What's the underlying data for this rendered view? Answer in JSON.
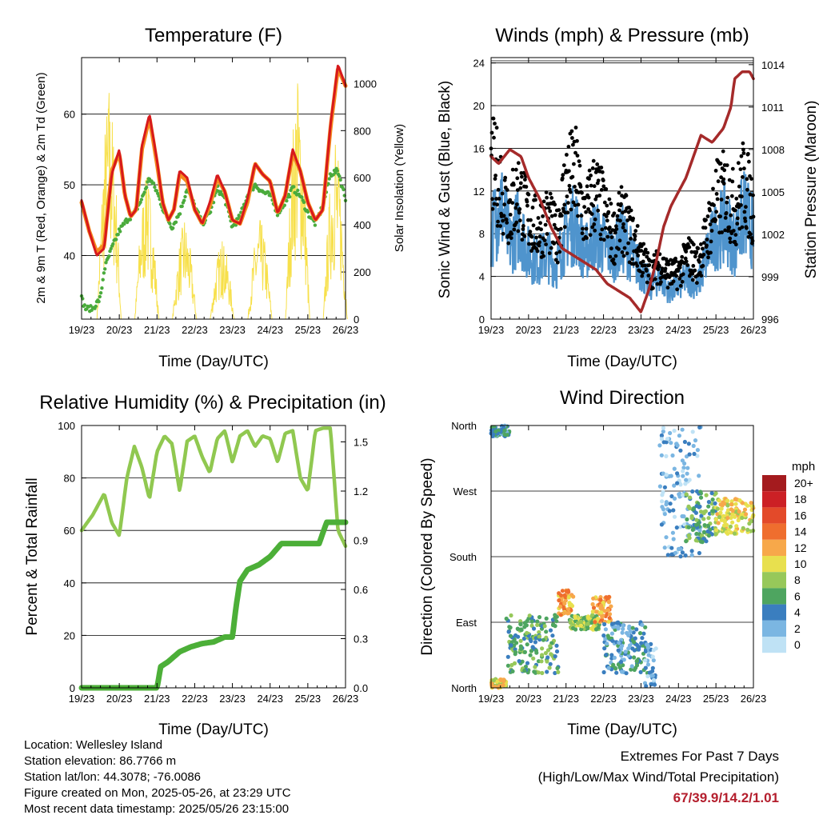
{
  "chart_data": [
    {
      "type": "line",
      "title": "Temperature (F)",
      "xlabel": "Time (Day/UTC)",
      "ylabel": "2m & 9m T (Red, Orange) & 2m Td (Green)",
      "y2label": "Solar Insolation (Yellow)",
      "x_ticks": [
        "19/23",
        "20/23",
        "21/23",
        "22/23",
        "23/23",
        "24/23",
        "25/23",
        "26/23"
      ],
      "ylim": [
        31,
        68
      ],
      "yticks": [
        40,
        50,
        60
      ],
      "y2lim": [
        0,
        1110
      ],
      "y2ticks": [
        0,
        200,
        400,
        600,
        800,
        1000
      ],
      "grid": true,
      "colors": {
        "t2m": "#d7191c",
        "t9m": "#f68b1f",
        "td": "#4aab3c",
        "solar": "#f7e04b"
      },
      "series": [
        {
          "key": "t9m",
          "x": [
            0,
            0.2,
            0.4,
            0.6,
            0.8,
            1.0,
            1.15,
            1.3,
            1.45,
            1.6,
            1.8,
            2.0,
            2.15,
            2.3,
            2.45,
            2.6,
            2.8,
            3.0,
            3.2,
            3.4,
            3.6,
            3.8,
            4.0,
            4.2,
            4.4,
            4.6,
            4.8,
            5.0,
            5.2,
            5.4,
            5.6,
            5.8,
            6.0,
            6.2,
            6.4,
            6.6,
            6.8,
            7.0
          ],
          "y": [
            47.5,
            43.5,
            40.5,
            41.5,
            52,
            54.5,
            48.5,
            45.5,
            46.5,
            55,
            59.5,
            53,
            47.5,
            45,
            46.5,
            51.5,
            50.5,
            46.5,
            44.5,
            47,
            51,
            49,
            45,
            44.5,
            47.5,
            53,
            51.5,
            50.5,
            46,
            48.5,
            54.5,
            52,
            47.5,
            45,
            46.5,
            58,
            66.5,
            64
          ]
        },
        {
          "key": "t2m",
          "x": [
            0,
            0.2,
            0.4,
            0.6,
            0.8,
            1.0,
            1.15,
            1.3,
            1.45,
            1.6,
            1.8,
            2.0,
            2.15,
            2.3,
            2.45,
            2.6,
            2.8,
            3.0,
            3.2,
            3.4,
            3.6,
            3.8,
            4.0,
            4.2,
            4.4,
            4.6,
            4.8,
            5.0,
            5.2,
            5.4,
            5.6,
            5.8,
            6.0,
            6.2,
            6.4,
            6.6,
            6.8,
            7.0
          ],
          "y": [
            47.8,
            43.5,
            40,
            41,
            51.5,
            55,
            48.5,
            45.5,
            46.5,
            55.5,
            60,
            53.5,
            47.5,
            45,
            46.5,
            52,
            51,
            46.5,
            44.5,
            47.5,
            51.5,
            49,
            45,
            44.5,
            48,
            53,
            51.5,
            50.5,
            46,
            48.5,
            55,
            52,
            47.5,
            45,
            46.5,
            58.5,
            67,
            64
          ]
        },
        {
          "key": "td",
          "x": [
            0,
            0.1,
            0.3,
            0.5,
            0.6,
            0.8,
            1.0,
            1.2,
            1.4,
            1.6,
            1.8,
            2.0,
            2.2,
            2.4,
            2.6,
            2.8,
            3.0,
            3.2,
            3.4,
            3.6,
            3.8,
            4.0,
            4.2,
            4.4,
            4.6,
            4.8,
            5.0,
            5.2,
            5.4,
            5.6,
            5.8,
            6.0,
            6.2,
            6.4,
            6.6,
            6.8,
            7.0
          ],
          "y": [
            34,
            32.5,
            32.5,
            34,
            38,
            41,
            43.5,
            45,
            46,
            48,
            51,
            49,
            46,
            44,
            46,
            49.5,
            47,
            44.5,
            46,
            49.5,
            48,
            44,
            45.5,
            48.5,
            50,
            49,
            48.5,
            46,
            47.5,
            49.5,
            48.5,
            46,
            44.5,
            47,
            51.5,
            52,
            48
          ]
        },
        {
          "key": "solar",
          "note": "diurnal peaks",
          "peaks_x": [
            0.73,
            1.73,
            2.73,
            3.73,
            4.73,
            5.73,
            6.73
          ],
          "peaks_y": [
            960,
            600,
            410,
            330,
            420,
            1000,
            740
          ]
        }
      ]
    },
    {
      "type": "scatter",
      "title": "Winds (mph) & Pressure (mb)",
      "xlabel": "Time (Day/UTC)",
      "ylabel": "Sonic Wind & Gust (Blue, Black)",
      "y2label": "Station Pressure (Maroon)",
      "x_ticks": [
        "19/23",
        "20/23",
        "21/23",
        "22/23",
        "23/23",
        "24/23",
        "25/23",
        "26/23"
      ],
      "ylim": [
        0,
        24.5
      ],
      "yticks": [
        0,
        4,
        8,
        12,
        16,
        20,
        24
      ],
      "y2lim": [
        996,
        1014.5
      ],
      "y2ticks": [
        996,
        999,
        1002,
        1005,
        1008,
        1011,
        1014
      ],
      "grid": true,
      "colors": {
        "wind": "#4f94cd",
        "gust": "#000000",
        "pressure": "#a52a2a"
      },
      "series": [
        {
          "key": "wind",
          "x": [
            0,
            0.25,
            0.5,
            0.75,
            1.0,
            1.25,
            1.5,
            1.75,
            2.0,
            2.25,
            2.5,
            2.75,
            3.0,
            3.25,
            3.5,
            3.75,
            4.0,
            4.25,
            4.5,
            4.75,
            5.0,
            5.25,
            5.5,
            5.75,
            6.0,
            6.25,
            6.5,
            6.75,
            7.0
          ],
          "y": [
            8,
            11,
            7,
            9,
            6,
            5.5,
            6,
            5,
            8,
            9,
            6,
            8,
            7,
            6,
            7.5,
            6,
            4.5,
            3,
            4,
            2.5,
            3,
            4,
            3,
            6,
            8,
            9,
            7,
            10,
            8
          ]
        },
        {
          "key": "gust",
          "x": [
            0,
            0.25,
            0.5,
            0.75,
            1.0,
            1.25,
            1.5,
            1.75,
            2.0,
            2.25,
            2.5,
            2.75,
            3.0,
            3.25,
            3.5,
            3.75,
            4.0,
            4.25,
            4.5,
            4.75,
            5.0,
            5.25,
            5.5,
            5.75,
            6.0,
            6.25,
            6.5,
            6.75,
            7.0
          ],
          "y": [
            17,
            15,
            12,
            14,
            11,
            10,
            11,
            9,
            15,
            16,
            11,
            14,
            12,
            9,
            11,
            9,
            7,
            5,
            6,
            5,
            5,
            7,
            6,
            9,
            13,
            14,
            12,
            15,
            12
          ]
        },
        {
          "key": "pressure",
          "x": [
            0,
            0.2,
            0.5,
            0.8,
            1.0,
            1.3,
            1.6,
            1.9,
            2.2,
            2.5,
            2.8,
            3.1,
            3.4,
            3.7,
            4.0,
            4.2,
            4.4,
            4.6,
            4.8,
            5.0,
            5.2,
            5.4,
            5.6,
            5.9,
            6.2,
            6.4,
            6.5,
            6.7,
            6.9,
            7.0
          ],
          "y": [
            1007.5,
            1007,
            1008,
            1007.5,
            1006,
            1004.5,
            1002.5,
            1001,
            1000.5,
            1000,
            999.5,
            998.5,
            998,
            997.5,
            996.5,
            998,
            1000,
            1002.5,
            1004,
            1005,
            1006,
            1007.5,
            1009,
            1008.5,
            1009.5,
            1011,
            1013,
            1013.5,
            1013.5,
            1013
          ]
        }
      ]
    },
    {
      "type": "line",
      "title": "Relative Humidity (%) & Precipitation (in)",
      "xlabel": "Time (Day/UTC)",
      "ylabel": "Percent & Total Rainfall",
      "x_ticks": [
        "19/23",
        "20/23",
        "21/23",
        "22/23",
        "23/23",
        "24/23",
        "25/23",
        "26/23"
      ],
      "ylim": [
        0,
        100
      ],
      "yticks": [
        0,
        20,
        40,
        60,
        80,
        100
      ],
      "y2lim": [
        0,
        1.6
      ],
      "y2ticks": [
        "0.0",
        "0.3",
        "0.6",
        "0.9",
        "1.2",
        "1.5"
      ],
      "y2tick_values": [
        0,
        0.3,
        0.6,
        0.9,
        1.2,
        1.5
      ],
      "grid": true,
      "colors": {
        "rh": "#90c850",
        "precip": "#4caf38"
      },
      "series": [
        {
          "key": "rh",
          "x": [
            0,
            0.3,
            0.6,
            0.8,
            1.0,
            1.2,
            1.4,
            1.6,
            1.8,
            2.0,
            2.2,
            2.4,
            2.6,
            2.8,
            3.0,
            3.2,
            3.4,
            3.6,
            3.8,
            4.0,
            4.2,
            4.4,
            4.6,
            4.8,
            5.0,
            5.2,
            5.4,
            5.6,
            5.8,
            6.0,
            6.2,
            6.4,
            6.6,
            6.8,
            7.0
          ],
          "y": [
            60,
            66,
            74,
            63,
            58,
            80,
            92,
            84,
            72,
            90,
            96,
            93,
            75,
            94,
            96,
            88,
            82,
            95,
            98,
            86,
            96,
            98,
            92,
            96,
            95,
            86,
            97,
            98,
            80,
            75,
            98,
            99,
            99,
            60,
            54
          ]
        },
        {
          "key": "precip",
          "x": [
            0,
            1.0,
            2.0,
            2.1,
            2.3,
            2.6,
            2.9,
            3.2,
            3.5,
            3.8,
            4.0,
            4.1,
            4.2,
            4.4,
            4.7,
            5.0,
            5.3,
            5.6,
            6.0,
            6.3,
            6.5,
            7.0
          ],
          "y": [
            0,
            0,
            0,
            0.13,
            0.16,
            0.22,
            0.25,
            0.27,
            0.28,
            0.31,
            0.31,
            0.5,
            0.65,
            0.72,
            0.75,
            0.8,
            0.88,
            0.88,
            0.88,
            0.88,
            1.01,
            1.01
          ]
        }
      ]
    },
    {
      "type": "scatter",
      "title": "Wind Direction",
      "xlabel": "Time (Day/UTC)",
      "ylabel": "Direction (Colored By Speed)",
      "x_ticks": [
        "19/23",
        "20/23",
        "21/23",
        "22/23",
        "23/23",
        "24/23",
        "25/23",
        "26/23"
      ],
      "y_categories": [
        "North",
        "East",
        "South",
        "West",
        "North"
      ],
      "grid": true,
      "colorbar_title": "mph",
      "colorbar_labels": [
        "20+",
        "18",
        "16",
        "14",
        "12",
        "10",
        "8",
        "6",
        "4",
        "2",
        "0"
      ],
      "colorbar_colors": [
        "#a41b1e",
        "#cc2025",
        "#e34a2a",
        "#ef6e2e",
        "#f7a84a",
        "#e8e04e",
        "#97c85a",
        "#4ea560",
        "#3a7ebf",
        "#7bb6e2",
        "#bfe2f5"
      ],
      "clusters": [
        {
          "x0": 0.0,
          "x1": 0.5,
          "y0": 345,
          "y1": 360,
          "speed": 4
        },
        {
          "x0": 0.0,
          "x1": 0.4,
          "y0": 0,
          "y1": 12,
          "speed": 10
        },
        {
          "x0": 0.4,
          "x1": 1.8,
          "y0": 20,
          "y1": 100,
          "speed": 6
        },
        {
          "x0": 1.8,
          "x1": 2.2,
          "y0": 100,
          "y1": 135,
          "speed": 12
        },
        {
          "x0": 2.1,
          "x1": 2.9,
          "y0": 80,
          "y1": 100,
          "speed": 8
        },
        {
          "x0": 2.7,
          "x1": 3.2,
          "y0": 90,
          "y1": 125,
          "speed": 12
        },
        {
          "x0": 3.0,
          "x1": 4.2,
          "y0": 20,
          "y1": 90,
          "speed": 4
        },
        {
          "x0": 4.1,
          "x1": 4.4,
          "y0": 0,
          "y1": 60,
          "speed": 2
        },
        {
          "x0": 4.5,
          "x1": 5.6,
          "y0": 180,
          "y1": 360,
          "speed": 2
        },
        {
          "x0": 5.2,
          "x1": 6.0,
          "y0": 200,
          "y1": 270,
          "speed": 6
        },
        {
          "x0": 6.0,
          "x1": 7.0,
          "y0": 210,
          "y1": 260,
          "speed": 10
        }
      ]
    }
  ],
  "info": {
    "location": "Location: Wellesley Island",
    "elevation": "Station elevation: 86.7766 m",
    "latlon": "Station lat/lon: 44.3078; -76.0086",
    "created": "Figure created on Mon, 2025-05-26, at 23:29 UTC",
    "recent": "Most recent data timestamp: 2025/05/26 23:15:00"
  },
  "extremes": {
    "title": "Extremes For Past 7 Days",
    "subtitle": "(High/Low/Max Wind/Total Precipitation)",
    "values": "67/39.9/14.2/1.01"
  }
}
